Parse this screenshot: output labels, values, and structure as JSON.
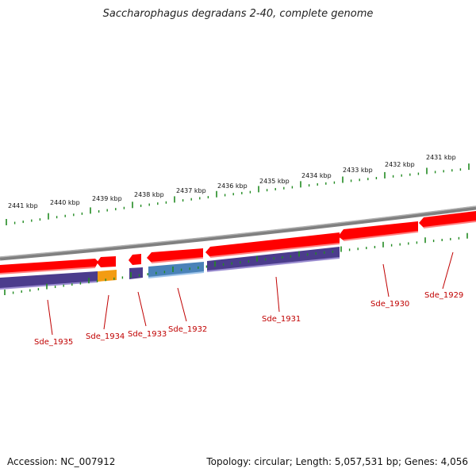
{
  "title": "Saccharophagus degradans 2-40, complete genome",
  "footer": {
    "accession": "Accession: NC_007912",
    "summary": "Topology: circular; Length: 5,057,531 bp; Genes: 4,056"
  },
  "kbp_labels": [
    "2441 kbp",
    "2440 kbp",
    "2439 kbp",
    "2438 kbp",
    "2437 kbp",
    "2436 kbp",
    "2435 kbp",
    "2434 kbp",
    "2433 kbp",
    "2432 kbp",
    "2431 kbp"
  ],
  "gene_labels": [
    "Sde_1935",
    "Sde_1934",
    "Sde_1933",
    "Sde_1932",
    "Sde_1931",
    "Sde_1930",
    "Sde_1929"
  ],
  "colors": {
    "backbone": "#808080",
    "gene": "#ff0000",
    "cds_purple": "#4b3c8c",
    "cds_orange": "#f39c12",
    "cds_blue": "#4a82b8",
    "tick": "#228b22",
    "label": "#c00000"
  }
}
